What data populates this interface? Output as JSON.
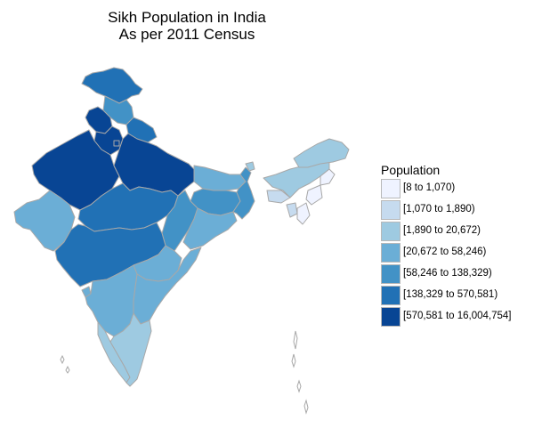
{
  "title": {
    "line1": "Sikh Population in India",
    "line2": "As per 2011 Census"
  },
  "legend": {
    "title": "Population",
    "items": [
      {
        "label": "[8 to 1,070)",
        "color": "#eff3ff"
      },
      {
        "label": "[1,070 to 1,890)",
        "color": "#c6dbef"
      },
      {
        "label": "[1,890 to 20,672)",
        "color": "#9ecae1"
      },
      {
        "label": "[20,672 to 58,246)",
        "color": "#6baed6"
      },
      {
        "label": "[58,246 to 138,329)",
        "color": "#4292c6"
      },
      {
        "label": "[138,329 to 570,581)",
        "color": "#2171b5"
      },
      {
        "label": "[570,581 to 16,004,754]",
        "color": "#084594"
      }
    ]
  },
  "colors": {
    "border": "#a8a8a8",
    "background": "#ffffff"
  }
}
